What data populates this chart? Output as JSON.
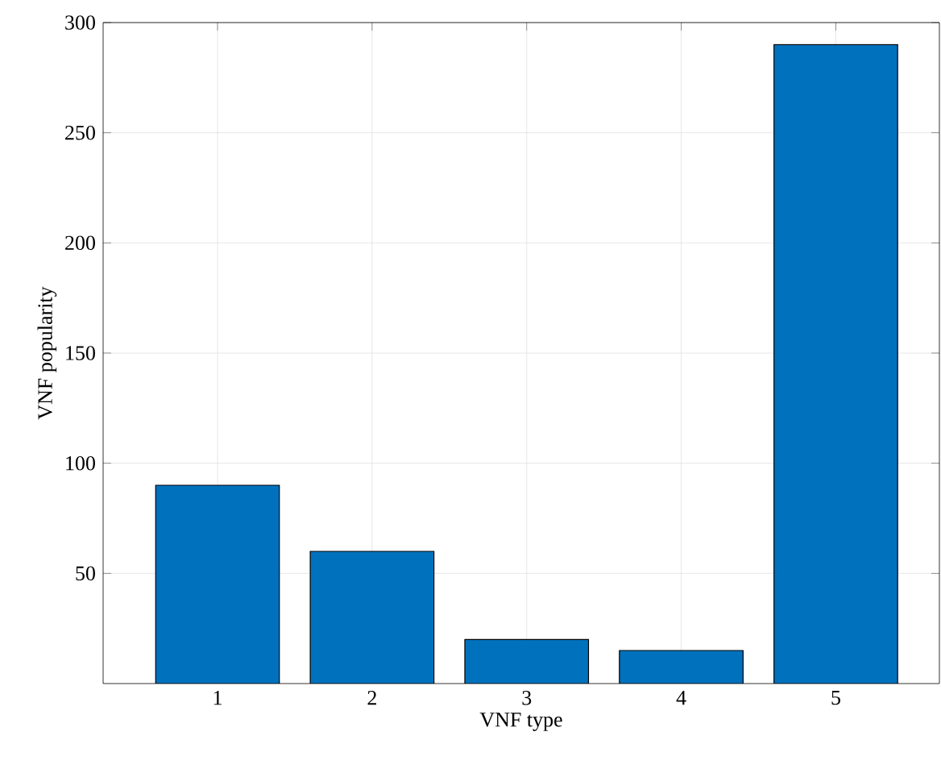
{
  "chart_data": {
    "type": "bar",
    "xlabel": "VNF type",
    "ylabel": "VNF popularity",
    "categories": [
      "1",
      "2",
      "3",
      "4",
      "5"
    ],
    "values": [
      90,
      60,
      20,
      15,
      290
    ],
    "color": "#0072bd",
    "ylim": [
      0,
      300
    ],
    "yticks": [
      50,
      100,
      150,
      200,
      250,
      300
    ],
    "grid": true
  }
}
